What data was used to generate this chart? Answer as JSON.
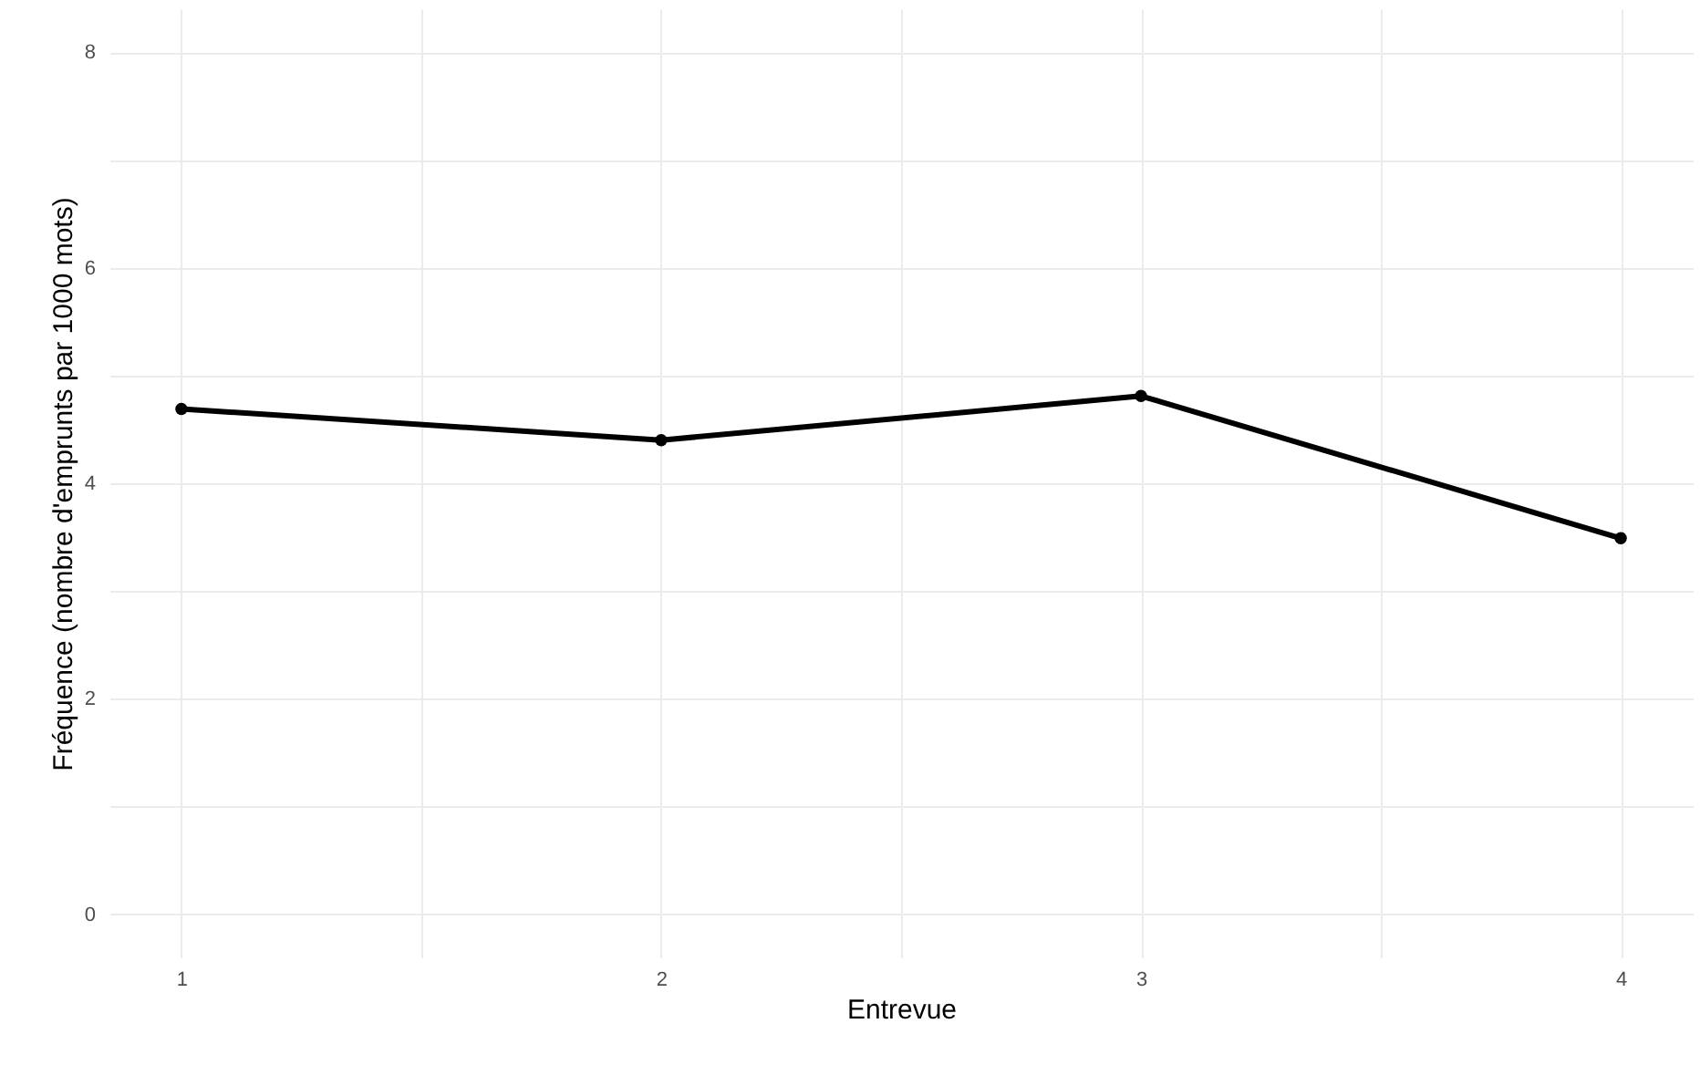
{
  "chart_data": {
    "type": "line",
    "xlabel": "Entrevue",
    "ylabel": "Fréquence (nombre d'emprunts par 1000 mots)",
    "x": [
      1,
      2,
      3,
      4
    ],
    "series": [
      {
        "color": "#000000",
        "values": [
          4.69,
          4.4,
          4.81,
          3.49
        ]
      }
    ],
    "xlim": [
      0.85,
      4.15
    ],
    "xticks": [
      1,
      {
        "value": 1.5,
        "label": null
      },
      2,
      {
        "value": 2.5,
        "label": null
      },
      3,
      {
        "value": 3.5,
        "label": null
      },
      4
    ],
    "ylim": [
      -0.4,
      8.4
    ],
    "yticks": [
      0,
      {
        "value": 1,
        "label": null
      },
      2,
      {
        "value": 3,
        "label": null
      },
      4,
      {
        "value": 5,
        "label": null
      },
      6,
      {
        "value": 7,
        "label": null
      },
      8
    ],
    "grid": true,
    "marker": "circle",
    "line_style": "solid"
  }
}
